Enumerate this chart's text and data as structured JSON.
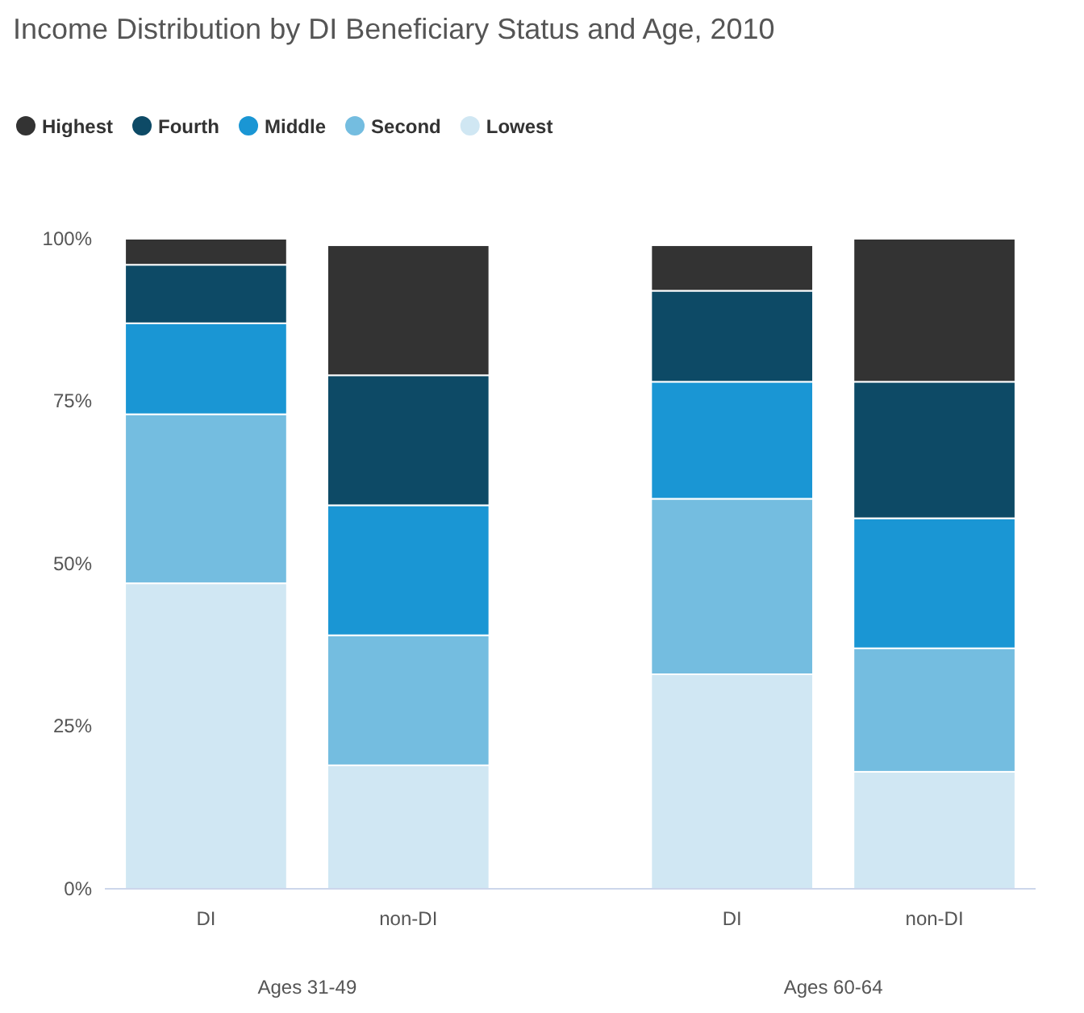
{
  "chart_data": {
    "type": "bar",
    "title": "Income Distribution by DI Beneficiary Status and Age, 2010",
    "stacked": true,
    "legend": "top left",
    "grid": false,
    "categories": [
      "DI",
      "non-DI",
      "DI",
      "non-DI"
    ],
    "annotations": [
      "Ages 31-49",
      "Ages 60-64"
    ],
    "ylim": [
      0,
      100
    ],
    "yticks": [
      {
        "value": 0,
        "label": "0%"
      },
      {
        "value": 25,
        "label": "25%"
      },
      {
        "value": 50,
        "label": "50%"
      },
      {
        "value": 75,
        "label": "75%"
      },
      {
        "value": 100,
        "label": "100%"
      }
    ],
    "series": [
      {
        "name": "Lowest",
        "color": "#d0e7f3",
        "values": [
          47,
          19,
          33,
          18
        ]
      },
      {
        "name": "Second",
        "color": "#74bde0",
        "values": [
          26,
          20,
          27,
          19
        ]
      },
      {
        "name": "Middle",
        "color": "#1a96d4",
        "values": [
          14,
          20,
          18,
          20
        ]
      },
      {
        "name": "Fourth",
        "color": "#0d4a66",
        "values": [
          9,
          20,
          14,
          21
        ]
      },
      {
        "name": "Highest",
        "color": "#333333",
        "values": [
          4,
          20,
          7,
          22
        ]
      }
    ]
  }
}
